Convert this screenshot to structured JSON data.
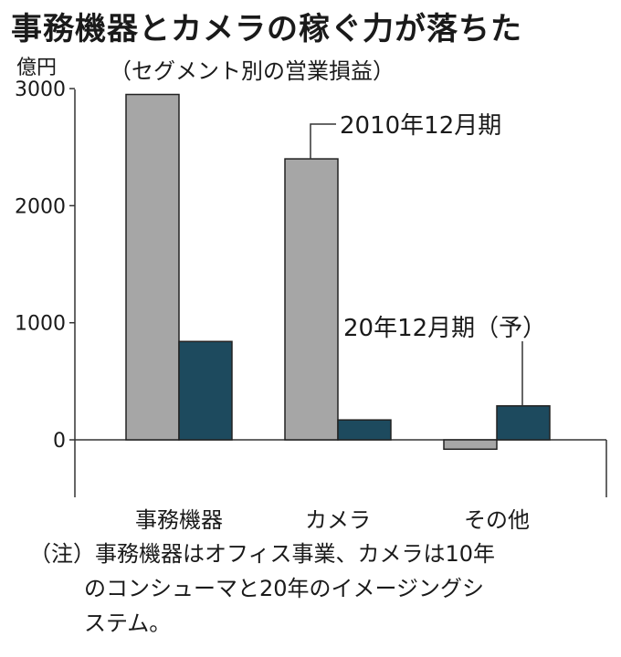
{
  "header": {
    "title": "事務機器とカメラの稼ぐ力が落ちた",
    "subtitle": "（セグメント別の営業損益）",
    "unit": "億円"
  },
  "chart_data": {
    "type": "bar",
    "categories": [
      "事務機器",
      "カメラ",
      "その他"
    ],
    "series": [
      {
        "name": "2010年12月期",
        "values": [
          2950,
          2400,
          -80
        ],
        "color": "#a6a6a6"
      },
      {
        "name": "20年12月期（予）",
        "values": [
          840,
          170,
          290
        ],
        "color": "#1d4a5e"
      }
    ],
    "yticks": [
      0,
      1000,
      2000,
      3000
    ],
    "ytick_labels": [
      "0",
      "1000",
      "2000",
      "3000"
    ],
    "ylim": [
      -450,
      3350
    ],
    "grid": false
  },
  "note": {
    "lines": [
      "（注）事務機器はオフィス事業、カメラは10年",
      "のコンシューマと20年のイメージングシ",
      "ステム。"
    ]
  }
}
